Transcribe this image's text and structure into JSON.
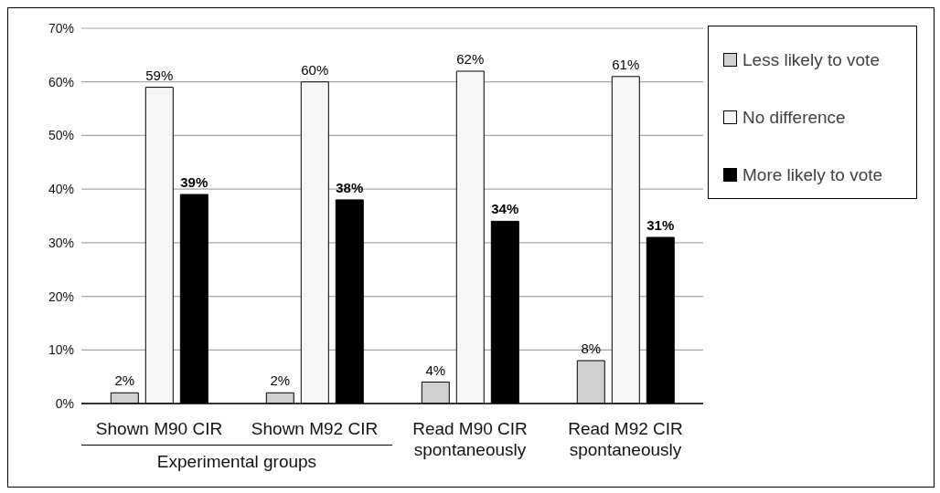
{
  "chart_data": {
    "type": "bar",
    "categories": [
      "Shown M90 CIR",
      "Shown M92 CIR",
      "Read M90 CIR spontaneously",
      "Read M92 CIR spontaneously"
    ],
    "series": [
      {
        "name": "Less likely to vote",
        "color": "#d0d0d0",
        "values": [
          2,
          2,
          4,
          8
        ],
        "value_labels": [
          "2%",
          "2%",
          "4%",
          "8%"
        ]
      },
      {
        "name": "No difference",
        "color": "#f5f6f5",
        "values": [
          59,
          60,
          62,
          61
        ],
        "value_labels": [
          "59%",
          "60%",
          "62%",
          "61%"
        ]
      },
      {
        "name": "More likely to vote",
        "color": "#000000",
        "values": [
          39,
          38,
          34,
          31
        ],
        "value_labels": [
          "39%",
          "38%",
          "34%",
          "31%"
        ]
      }
    ],
    "ylim": [
      0,
      70
    ],
    "yticks": [
      {
        "value": 0,
        "label": "0%"
      },
      {
        "value": 10,
        "label": "10%"
      },
      {
        "value": 20,
        "label": "20%"
      },
      {
        "value": 30,
        "label": "30%"
      },
      {
        "value": 40,
        "label": "40%"
      },
      {
        "value": 50,
        "label": "50%"
      },
      {
        "value": 60,
        "label": "60%"
      },
      {
        "value": 70,
        "label": "70%"
      }
    ],
    "grid": "y",
    "legend": "top right",
    "annotations": [
      "Experimental groups"
    ]
  }
}
